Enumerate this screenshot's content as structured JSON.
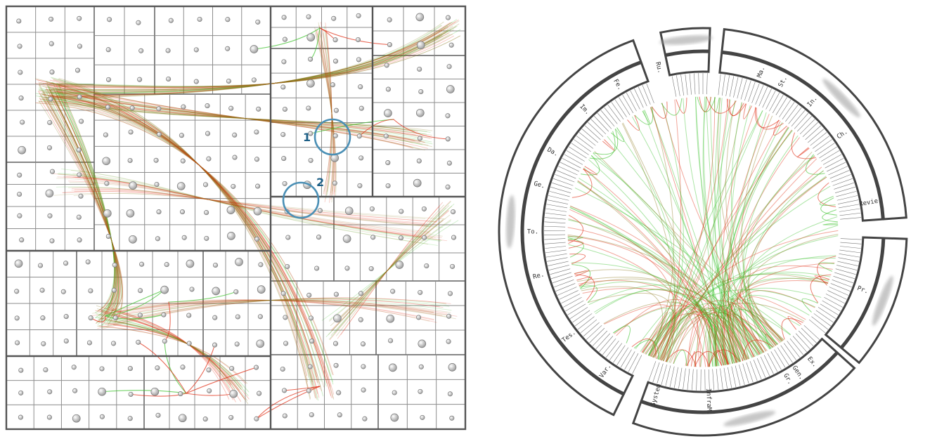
{
  "annotations": [
    {
      "label": "1"
    },
    {
      "label": "2"
    }
  ],
  "colors": {
    "edge_source": "#e02a10",
    "edge_target": "#3ac12a",
    "edge_mid": "#8c7a20",
    "annotation": "#4a8fb5",
    "annotation_text": "#1d5f86",
    "node_fill": "#d9d9d9",
    "frame": "#555555"
  },
  "radial_labels": [
    "Revie.",
    "System",
    "InfraM.",
    "Gen.",
    "Var.",
    "Tes.",
    "Ge.",
    "Da.",
    "Im.",
    "Fe.",
    "Ex.",
    "Gr.",
    "In.",
    "Ch.",
    "Ma.",
    "St.",
    "Pr.",
    "Re.",
    "To.",
    "Ru."
  ],
  "icons": {
    "left_view": "treemap-edge-bundle-diagram",
    "right_view": "radial-edge-bundle-diagram"
  }
}
